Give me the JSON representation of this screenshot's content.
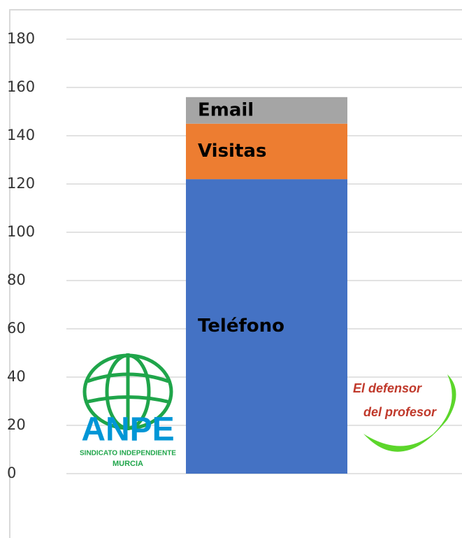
{
  "chart_data": {
    "type": "stacked_bar",
    "categories": [
      null
    ],
    "series": [
      {
        "name": "Teléfono",
        "color": "#4472c4",
        "values": [
          122
        ]
      },
      {
        "name": "Visitas",
        "color": "#ed7d31",
        "values": [
          23
        ]
      },
      {
        "name": "Email",
        "color": "#a5a5a5",
        "values": [
          11
        ]
      }
    ],
    "ylim": [
      0,
      180
    ],
    "yticks": [
      0,
      20,
      40,
      60,
      80,
      100,
      120,
      140,
      160,
      180
    ],
    "grid": true,
    "logos": {
      "left": [
        "ANPE",
        "SINDICATO INDEPENDIENTE",
        "MURCIA"
      ],
      "right": [
        "El defensor",
        "del profesor"
      ]
    }
  }
}
